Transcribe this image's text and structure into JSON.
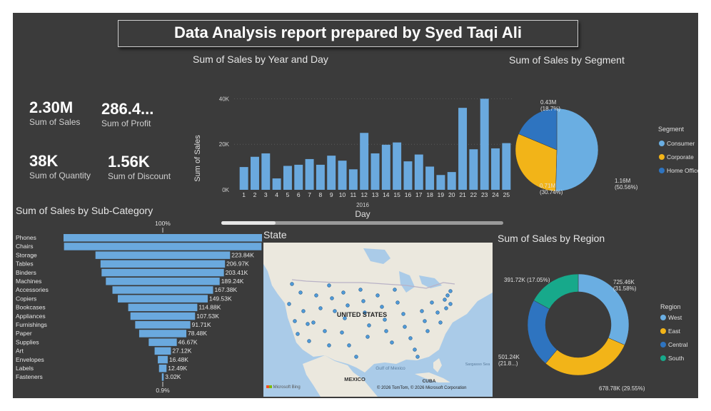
{
  "report_title": "Data Analysis report prepared by Syed Taqi Ali",
  "kpis": {
    "sales": {
      "value": "2.30M",
      "label": "Sum of Sales"
    },
    "profit": {
      "value": "286.4...",
      "label": "Sum of Profit"
    },
    "quantity": {
      "value": "38K",
      "label": "Sum of Quantity"
    },
    "discount": {
      "value": "1.56K",
      "label": "Sum of Discount"
    }
  },
  "year_day_chart": {
    "title": "Sum of Sales by Year and Day",
    "ylabel": "Sum of Sales",
    "xlabel": "Day",
    "year_label": "2016",
    "yticks": [
      "0K",
      "20K",
      "40K"
    ]
  },
  "subcat_chart": {
    "title": "Sum of Sales by Sub-Category",
    "top_pct": "100%",
    "bottom_pct": "0.9%"
  },
  "map": {
    "title": "State",
    "country_label": "UNITED STATES",
    "mexico_label": "MEXICO",
    "cuba_label": "CUBA",
    "gulf_label": "Gulf of Mexico",
    "sea_label": "Sargasso Sea",
    "bing_label": "Microsoft Bing",
    "copyright": "© 2026 TomTom, © 2026 Microsoft Corporation"
  },
  "segment_chart": {
    "title": "Sum of Sales by Segment",
    "legend_title": "Segment"
  },
  "region_chart": {
    "title": "Sum of Sales by Region",
    "legend_title": "Region"
  },
  "chart_data": [
    {
      "type": "bar",
      "title": "Sum of Sales by Year and Day",
      "xlabel": "Day",
      "ylabel": "Sum of Sales",
      "ylim": [
        0,
        42000
      ],
      "categories": [
        "1",
        "2",
        "3",
        "4",
        "5",
        "6",
        "7",
        "8",
        "9",
        "10",
        "11",
        "12",
        "13",
        "14",
        "15",
        "16",
        "17",
        "18",
        "19",
        "20",
        "21",
        "22",
        "23",
        "24",
        "25"
      ],
      "values": [
        10000,
        14500,
        16000,
        5000,
        10500,
        11000,
        13500,
        11000,
        15000,
        12800,
        9000,
        25000,
        16000,
        19800,
        20800,
        12500,
        15500,
        10200,
        6500,
        7800,
        36000,
        17800,
        40000,
        18200,
        20500
      ],
      "color": "#6aa9de"
    },
    {
      "type": "bar",
      "title": "Sum of Sales by Sub-Category",
      "categories": [
        "Phones",
        "Chairs",
        "Storage",
        "Tables",
        "Binders",
        "Machines",
        "Accessories",
        "Copiers",
        "Bookcases",
        "Appliances",
        "Furnishings",
        "Paper",
        "Supplies",
        "Art",
        "Envelopes",
        "Labels",
        "Fasteners"
      ],
      "values": [
        330010,
        328450,
        223840,
        206970,
        203410,
        189240,
        167380,
        149530,
        114880,
        107530,
        91710,
        78480,
        46670,
        27120,
        16480,
        12490,
        3020
      ],
      "labels": [
        "",
        "",
        "223.84K",
        "206.97K",
        "203.41K",
        "189.24K",
        "167.38K",
        "149.53K",
        "114.88K",
        "107.53K",
        "91.71K",
        "78.48K",
        "46.67K",
        "27.12K",
        "16.48K",
        "12.49K",
        "3.02K"
      ],
      "color": "#6aa9de"
    },
    {
      "type": "pie",
      "title": "Sum of Sales by Segment",
      "categories": [
        "Consumer",
        "Corporate",
        "Home Office"
      ],
      "values": [
        1160000,
        710000,
        430000
      ],
      "labels": [
        "1.16M\n(50.56%)",
        "0.71M\n(30.74%)",
        "0.43M\n(18.7%)"
      ],
      "colors": [
        "#6aaee2",
        "#f2b418",
        "#2e74c0"
      ]
    },
    {
      "type": "pie",
      "title": "Sum of Sales by Region",
      "categories": [
        "West",
        "East",
        "Central",
        "South"
      ],
      "values": [
        725460,
        678780,
        501240,
        391720
      ],
      "labels": [
        "725.46K\n(31.58%)",
        "678.78K (29.55%)",
        "501.24K\n(21.8...)",
        "391.72K (17.05%)"
      ],
      "colors": [
        "#6aaee2",
        "#f2b418",
        "#2e74c0",
        "#17a98b"
      ]
    }
  ]
}
